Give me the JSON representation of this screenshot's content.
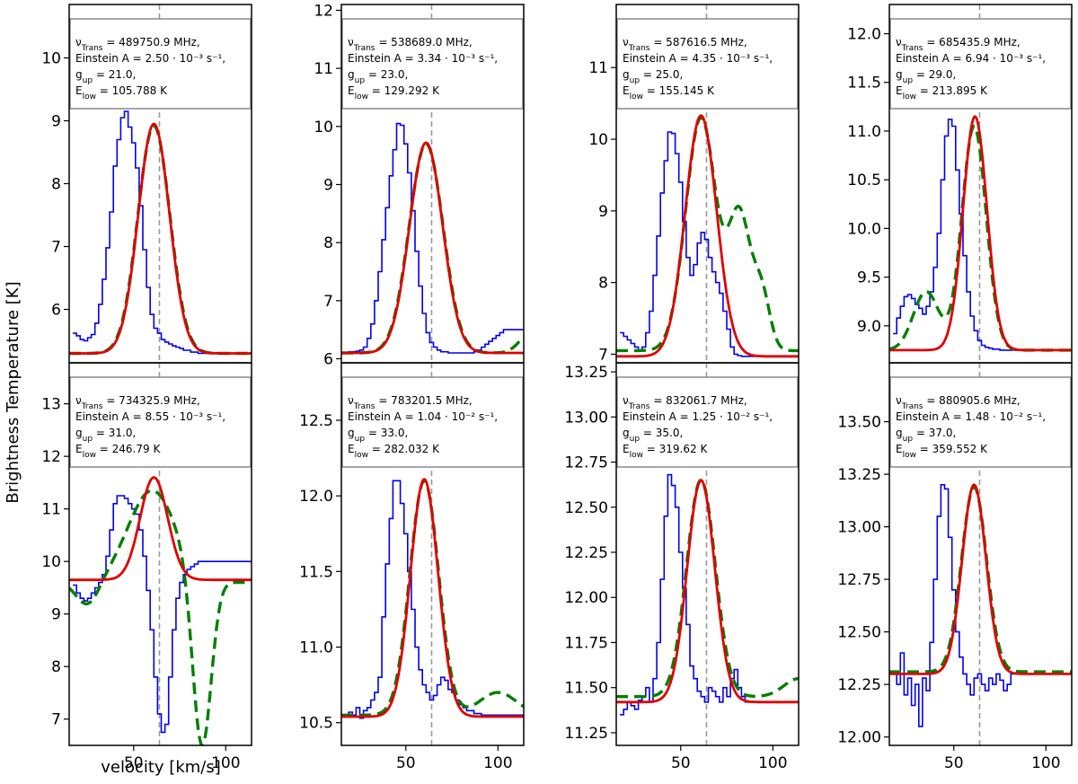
{
  "figure": {
    "ylabel": "Brightness Temperature [K]",
    "xlabel": "velocity [km/s]",
    "colors": {
      "data": "#0000ee",
      "model": "#008000",
      "fit": "#e00000",
      "vline": "#999999"
    }
  },
  "chart_data": [
    {
      "type": "line",
      "xlim": [
        15,
        114
      ],
      "ylim": [
        5.15,
        10.85
      ],
      "yticks": [
        6,
        7,
        8,
        9,
        10
      ],
      "ytick_labels": [
        "6",
        "7",
        "8",
        "9",
        "10"
      ],
      "xticks": [],
      "xtick_labels": [],
      "vline": 64,
      "info": [
        "ν_Trans = 489750.9 MHz,",
        "Einstein A = 2.50 · 10⁻³ s⁻¹,",
        "g_up = 21.0,",
        "E_low = 105.788 K"
      ],
      "fit": {
        "base": 5.3,
        "amp": 3.65,
        "center": 61,
        "sigma": 8.5
      },
      "model": {
        "base": 5.3,
        "amp": 3.62,
        "center": 61,
        "sigma": 8.7,
        "extra": []
      },
      "hist": {
        "x0": 17,
        "dx": 2,
        "values": [
          5.62,
          5.58,
          5.52,
          5.5,
          5.55,
          5.6,
          5.78,
          6.08,
          6.48,
          6.98,
          7.55,
          8.28,
          8.7,
          9.05,
          9.15,
          8.9,
          8.65,
          8.25,
          7.65,
          6.95,
          6.35,
          5.92,
          5.7,
          5.62,
          5.52,
          5.48,
          5.45,
          5.42,
          5.4,
          5.38,
          5.35,
          5.35,
          5.32,
          5.32,
          5.3,
          5.3,
          5.3,
          5.3,
          5.3,
          5.3,
          5.3,
          5.3,
          5.3,
          5.3,
          5.3,
          5.3,
          5.3,
          5.3,
          5.3
        ]
      }
    },
    {
      "type": "line",
      "xlim": [
        15,
        114
      ],
      "ylim": [
        5.93,
        12.1
      ],
      "yticks": [
        6,
        7,
        8,
        9,
        10,
        11,
        12
      ],
      "ytick_labels": [
        "6",
        "7",
        "8",
        "9",
        "10",
        "11",
        "12"
      ],
      "xticks": [],
      "xtick_labels": [],
      "vline": 64,
      "info": [
        "ν_Trans = 538689.0 MHz,",
        "Einstein A = 3.34 · 10⁻³ s⁻¹,",
        "g_up = 23.0,",
        "E_low = 129.292 K"
      ],
      "fit": {
        "base": 6.1,
        "amp": 3.62,
        "center": 61,
        "sigma": 9
      },
      "model": {
        "base": 6.1,
        "amp": 3.6,
        "center": 61,
        "sigma": 9.2,
        "extra": [
          {
            "amp": 0.35,
            "center": 118,
            "sigma": 6
          }
        ]
      },
      "hist": {
        "x0": 17,
        "dx": 2,
        "values": [
          6.1,
          6.12,
          6.12,
          6.13,
          6.15,
          6.2,
          6.35,
          6.6,
          7.0,
          7.5,
          8.05,
          8.6,
          9.15,
          9.6,
          10.05,
          10.02,
          9.7,
          9.2,
          8.55,
          7.85,
          7.25,
          6.78,
          6.45,
          6.28,
          6.2,
          6.15,
          6.12,
          6.12,
          6.1,
          6.1,
          6.1,
          6.1,
          6.1,
          6.1,
          6.1,
          6.12,
          6.15,
          6.2,
          6.25,
          6.3,
          6.35,
          6.4,
          6.45,
          6.5,
          6.5,
          6.5,
          6.5,
          6.5,
          6.5
        ]
      }
    },
    {
      "type": "line",
      "xlim": [
        15,
        114
      ],
      "ylim": [
        6.88,
        11.88
      ],
      "yticks": [
        7,
        8,
        9,
        10,
        11
      ],
      "ytick_labels": [
        "7",
        "8",
        "9",
        "10",
        "11"
      ],
      "xticks": [],
      "xtick_labels": [],
      "vline": 64,
      "info": [
        "ν_Trans = 587616.5 MHz,",
        "Einstein A = 4.35 · 10⁻³ s⁻¹,",
        "g_up = 25.0,",
        "E_low = 155.145 K"
      ],
      "fit": {
        "base": 6.97,
        "amp": 3.36,
        "center": 61,
        "sigma": 8.5
      },
      "model": {
        "base": 7.05,
        "amp": 3.25,
        "center": 61,
        "sigma": 8.3,
        "extra": [
          {
            "amp": 1.85,
            "center": 82,
            "sigma": 6
          },
          {
            "amp": 0.75,
            "center": 94,
            "sigma": 4.5
          }
        ]
      },
      "hist": {
        "x0": 17,
        "dx": 2,
        "values": [
          7.3,
          7.25,
          7.2,
          7.15,
          7.1,
          7.05,
          7.1,
          7.3,
          7.6,
          8.1,
          8.65,
          9.25,
          9.7,
          10.1,
          10.08,
          9.8,
          9.4,
          8.85,
          8.35,
          8.1,
          8.25,
          8.55,
          8.7,
          8.6,
          8.35,
          8.15,
          8.0,
          7.85,
          7.6,
          7.35,
          7.1,
          7.0,
          6.98,
          6.97,
          6.97,
          6.97,
          6.97,
          6.97,
          6.97,
          6.97,
          6.97,
          6.97,
          6.97,
          6.97,
          6.97,
          6.97,
          6.97,
          6.97,
          6.97
        ]
      }
    },
    {
      "type": "line",
      "xlim": [
        15,
        114
      ],
      "ylim": [
        8.62,
        12.3
      ],
      "yticks": [
        9.0,
        9.5,
        10.0,
        10.5,
        11.0,
        11.5,
        12.0
      ],
      "ytick_labels": [
        "9.0",
        "9.5",
        "10.0",
        "10.5",
        "11.0",
        "11.5",
        "12.0"
      ],
      "xticks": [],
      "xtick_labels": [],
      "vline": 64,
      "info": [
        "ν_Trans = 685435.9 MHz,",
        "Einstein A = 6.94 · 10⁻³ s⁻¹,",
        "g_up = 29.0,",
        "E_low = 213.895 K"
      ],
      "fit": {
        "base": 8.75,
        "amp": 2.4,
        "center": 61.5,
        "sigma": 6.5
      },
      "model": {
        "base": 8.75,
        "amp": 2.3,
        "center": 61,
        "sigma": 6.6,
        "extra": [
          {
            "amp": 0.6,
            "center": 35,
            "sigma": 7
          }
        ]
      },
      "hist": {
        "x0": 17,
        "dx": 2,
        "values": [
          8.92,
          9.08,
          9.2,
          9.3,
          9.32,
          9.28,
          9.22,
          9.18,
          9.12,
          9.2,
          9.35,
          9.6,
          9.95,
          10.5,
          10.95,
          11.12,
          11.05,
          10.6,
          10.15,
          9.72,
          9.35,
          9.1,
          8.95,
          8.85,
          8.8,
          8.78,
          8.77,
          8.76,
          8.76,
          8.75,
          8.75,
          8.75,
          8.75,
          8.75,
          8.75,
          8.75,
          8.75,
          8.75,
          8.75,
          8.75,
          8.75,
          8.75,
          8.75,
          8.75,
          8.75,
          8.75,
          8.75,
          8.75,
          8.75
        ]
      }
    },
    {
      "type": "line",
      "xlim": [
        15,
        114
      ],
      "ylim": [
        6.5,
        13.78
      ],
      "yticks": [
        7,
        8,
        9,
        10,
        11,
        12,
        13
      ],
      "ytick_labels": [
        "7",
        "8",
        "9",
        "10",
        "11",
        "12",
        "13"
      ],
      "xticks": [
        50,
        100
      ],
      "xtick_labels": [
        "50",
        "100"
      ],
      "vline": 64,
      "info": [
        "ν_Trans = 734325.9 MHz,",
        "Einstein A = 8.55 · 10⁻³ s⁻¹,",
        "g_up = 31.0,",
        "E_low = 246.79 K"
      ],
      "fit": {
        "base": 9.65,
        "amp": 1.95,
        "center": 61,
        "sigma": 7.5
      },
      "model": {
        "base": 9.6,
        "amp": 1.75,
        "center": 60,
        "sigma": 13,
        "extra": [
          {
            "amp": -3.3,
            "center": 87,
            "sigma": 5
          },
          {
            "amp": -0.45,
            "center": 25,
            "sigma": 6
          }
        ]
      },
      "hist": {
        "x0": 17,
        "dx": 2,
        "values": [
          9.55,
          9.4,
          9.3,
          9.25,
          9.3,
          9.4,
          9.5,
          9.6,
          9.75,
          10.1,
          10.6,
          11.1,
          11.25,
          11.25,
          11.2,
          11.1,
          11.0,
          10.9,
          10.6,
          10.1,
          9.45,
          8.7,
          7.8,
          7.1,
          6.75,
          6.9,
          7.8,
          8.7,
          9.3,
          9.6,
          9.75,
          9.85,
          9.9,
          9.95,
          10.0,
          10.0,
          10.0,
          10.0,
          10.0,
          10.0,
          10.0,
          10.0,
          10.0,
          10.0,
          10.0,
          10.0,
          10.0,
          10.0,
          10.0
        ]
      }
    },
    {
      "type": "line",
      "xlim": [
        15,
        114
      ],
      "ylim": [
        10.35,
        12.88
      ],
      "yticks": [
        10.5,
        11.0,
        11.5,
        12.0,
        12.5
      ],
      "ytick_labels": [
        "10.5",
        "11.0",
        "11.5",
        "12.0",
        "12.5"
      ],
      "xticks": [
        50,
        100
      ],
      "xtick_labels": [
        "50",
        "100"
      ],
      "vline": 64,
      "info": [
        "ν_Trans = 783201.5 MHz,",
        "Einstein A = 1.04 · 10⁻² s⁻¹,",
        "g_up = 33.0,",
        "E_low = 282.032 K"
      ],
      "fit": {
        "base": 10.54,
        "amp": 1.57,
        "center": 60,
        "sigma": 7.5
      },
      "model": {
        "base": 10.55,
        "amp": 1.55,
        "center": 60,
        "sigma": 7.8,
        "extra": [
          {
            "amp": 0.15,
            "center": 100,
            "sigma": 10
          }
        ]
      },
      "hist": {
        "x0": 17,
        "dx": 2,
        "values": [
          10.55,
          10.57,
          10.55,
          10.6,
          10.53,
          10.58,
          10.6,
          10.65,
          10.7,
          10.8,
          11.2,
          11.55,
          11.85,
          12.1,
          12.1,
          11.95,
          11.75,
          11.5,
          11.25,
          11.0,
          10.85,
          10.75,
          10.7,
          10.65,
          10.68,
          10.75,
          10.8,
          10.78,
          10.72,
          10.7,
          10.65,
          10.62,
          10.6,
          10.58,
          10.58,
          10.56,
          10.56,
          10.55,
          10.55,
          10.55,
          10.55,
          10.55,
          10.55,
          10.55,
          10.55,
          10.55,
          10.55,
          10.55,
          10.55
        ]
      }
    },
    {
      "type": "line",
      "xlim": [
        15,
        114
      ],
      "ylim": [
        11.18,
        13.3
      ],
      "yticks": [
        11.25,
        11.5,
        11.75,
        12.0,
        12.25,
        12.5,
        12.75,
        13.0,
        13.25
      ],
      "ytick_labels": [
        "11.25",
        "11.50",
        "11.75",
        "12.00",
        "12.25",
        "12.50",
        "12.75",
        "13.00",
        "13.25"
      ],
      "xticks": [
        50,
        100
      ],
      "xtick_labels": [
        "50",
        "100"
      ],
      "vline": 64,
      "info": [
        "ν_Trans = 832061.7 MHz,",
        "Einstein A = 1.25 · 10⁻² s⁻¹,",
        "g_up = 35.0,",
        "E_low = 319.62 K"
      ],
      "fit": {
        "base": 11.42,
        "amp": 1.23,
        "center": 61,
        "sigma": 7.5
      },
      "model": {
        "base": 11.45,
        "amp": 1.2,
        "center": 61,
        "sigma": 7.8,
        "extra": [
          {
            "amp": 0.1,
            "center": 114,
            "sigma": 8
          }
        ]
      },
      "hist": {
        "x0": 17,
        "dx": 2,
        "values": [
          11.35,
          11.38,
          11.42,
          11.4,
          11.38,
          11.43,
          11.45,
          11.5,
          11.42,
          11.55,
          11.75,
          12.1,
          12.45,
          12.68,
          12.62,
          12.5,
          12.25,
          12.05,
          11.85,
          11.62,
          11.55,
          11.48,
          11.45,
          11.42,
          11.5,
          11.48,
          11.45,
          11.42,
          11.5,
          11.45,
          11.55,
          11.6,
          11.5,
          11.45,
          11.42,
          11.42,
          11.42,
          11.42,
          11.42,
          11.42,
          11.42,
          11.42,
          11.42,
          11.42,
          11.42,
          11.42,
          11.42,
          11.42,
          11.42
        ]
      }
    },
    {
      "type": "line",
      "xlim": [
        15,
        114
      ],
      "ylim": [
        11.96,
        13.78
      ],
      "yticks": [
        12.0,
        12.25,
        12.5,
        12.75,
        13.0,
        13.25,
        13.5
      ],
      "ytick_labels": [
        "12.00",
        "12.25",
        "12.50",
        "12.75",
        "13.00",
        "13.25",
        "13.50"
      ],
      "xticks": [
        50,
        100
      ],
      "xtick_labels": [
        "50",
        "100"
      ],
      "vline": 64,
      "info": [
        "ν_Trans = 880905.6 MHz,",
        "Einstein A = 1.48 · 10⁻² s⁻¹,",
        "g_up = 37.0,",
        "E_low = 359.552 K"
      ],
      "fit": {
        "base": 12.3,
        "amp": 0.9,
        "center": 61,
        "sigma": 6.5
      },
      "model": {
        "base": 12.31,
        "amp": 0.88,
        "center": 61,
        "sigma": 6.8,
        "extra": []
      },
      "hist": {
        "x0": 17,
        "dx": 2,
        "values": [
          12.3,
          12.25,
          12.4,
          12.2,
          12.28,
          12.15,
          12.25,
          12.05,
          12.28,
          12.22,
          12.45,
          12.75,
          13.05,
          13.2,
          13.18,
          12.95,
          12.7,
          12.5,
          12.38,
          12.3,
          12.25,
          12.2,
          12.28,
          12.3,
          12.25,
          12.22,
          12.28,
          12.25,
          12.3,
          12.27,
          12.22,
          12.25,
          12.3,
          12.3,
          12.3,
          12.3,
          12.3,
          12.3,
          12.3,
          12.3,
          12.3,
          12.3,
          12.3,
          12.3,
          12.3,
          12.3,
          12.3,
          12.3,
          12.3
        ]
      }
    }
  ]
}
